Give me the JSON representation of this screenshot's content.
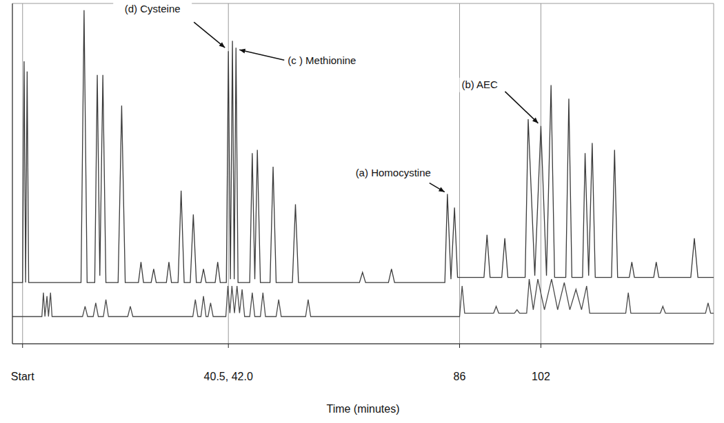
{
  "chart_data": {
    "type": "line",
    "xlabel": "Time (minutes)",
    "xlim": [
      -2,
      136
    ],
    "xticks": [
      {
        "value": 0,
        "label": "Start"
      },
      {
        "value": 40.5,
        "label": "40.5, 42.0"
      },
      86,
      102
    ],
    "ylim": [
      0,
      100
    ],
    "yticks": [
      0,
      10,
      20,
      30,
      40,
      50,
      60,
      70,
      80,
      90,
      100
    ],
    "tick_labels": "x",
    "grid": true,
    "series": [
      {
        "color": "#3a3a3a",
        "x": [
          -2,
          0,
          0.3,
          0.6,
          0.9,
          1.2,
          11.5,
          12.1,
          12.7,
          14.2,
          14.7,
          15.2,
          15.8,
          16.4,
          18.8,
          19.5,
          20.2,
          22.8,
          23.3,
          23.8,
          25.3,
          25.8,
          26.3,
          28.3,
          28.8,
          29.3,
          30.6,
          31.2,
          31.8,
          33.0,
          33.6,
          34.2,
          35.1,
          35.6,
          36.1,
          37.9,
          38.4,
          38.9,
          40.1,
          40.5,
          40.9,
          41.3,
          41.65,
          42.0,
          42.4,
          44.7,
          45.2,
          45.7,
          46.2,
          46.8,
          48.7,
          49.3,
          49.9,
          53.1,
          53.7,
          54.3,
          66.3,
          66.9,
          67.5,
          72.0,
          72.6,
          73.2,
          83.1,
          83.6,
          84.3,
          85.0,
          85.6,
          90.8,
          91.4,
          92.0,
          94.3,
          94.9,
          95.5,
          98.9,
          99.5,
          100.8,
          102.0,
          103.1,
          104.0,
          104.7,
          106.9,
          107.5,
          108.1,
          110.2,
          110.7,
          111.4,
          112.1,
          112.7,
          115.9,
          116.5,
          117.1,
          119.4,
          119.9,
          120.4,
          124.2,
          124.7,
          125.2,
          131.5,
          132.2,
          132.9,
          136
        ],
        "values": [
          18,
          18,
          83,
          18,
          80,
          18,
          18,
          98,
          18,
          18,
          79,
          20,
          79,
          18,
          18,
          70,
          18,
          18,
          24,
          18,
          18,
          22,
          18,
          18,
          24,
          18,
          18,
          45,
          18,
          18,
          38,
          18,
          18,
          22,
          18,
          18,
          24,
          18,
          18,
          86,
          19,
          89,
          19,
          87,
          18,
          18,
          56,
          19,
          57,
          18,
          18,
          52,
          18,
          18,
          41,
          18,
          18,
          21,
          18,
          18,
          22,
          18,
          18,
          44,
          19,
          40,
          19.5,
          19.5,
          32,
          19.5,
          19.5,
          31,
          19.5,
          19.5,
          66,
          20,
          64,
          20,
          76,
          19.5,
          19.5,
          72,
          19.5,
          19.5,
          56,
          20,
          59,
          19.5,
          19.5,
          57,
          19.5,
          19.5,
          24,
          19.5,
          19.5,
          24,
          19.5,
          19.5,
          31,
          19.5,
          19.5
        ]
      },
      {
        "color": "#4a4a4a",
        "x": [
          -2,
          3.8,
          4.1,
          4.4,
          4.8,
          5.1,
          5.5,
          5.8,
          11.8,
          12.3,
          12.8,
          13.9,
          14.4,
          14.9,
          15.9,
          16.4,
          16.9,
          20.7,
          21.2,
          21.7,
          33.5,
          34.0,
          34.5,
          35.1,
          35.6,
          36.1,
          36.5,
          37.0,
          37.5,
          40.0,
          40.4,
          40.8,
          41.2,
          41.7,
          42.2,
          42.7,
          43.2,
          43.7,
          44.7,
          45.2,
          45.7,
          46.8,
          47.3,
          47.8,
          49.9,
          50.4,
          50.9,
          55.7,
          56.2,
          56.7,
          86.0,
          86.5,
          87.0,
          92.7,
          93.2,
          93.7,
          96.8,
          97.3,
          97.8,
          99.2,
          99.7,
          100.5,
          101.4,
          102.7,
          104.1,
          105.3,
          106.6,
          107.7,
          108.9,
          110.0,
          111.0,
          111.6,
          118.7,
          119.2,
          119.7,
          125.5,
          126.0,
          126.5,
          134.4,
          134.9,
          135.4,
          136
        ],
        "values": [
          8,
          8,
          15,
          8,
          14,
          8,
          15,
          8,
          8,
          11,
          8,
          8,
          12,
          8,
          8,
          13,
          8,
          8,
          11,
          8,
          8,
          13,
          8,
          8,
          14,
          8,
          8,
          12,
          8,
          8,
          17,
          9,
          17,
          9,
          17,
          9,
          16,
          8,
          8,
          15,
          8,
          8,
          15,
          8,
          8,
          13,
          8,
          8,
          13,
          8,
          8,
          17,
          9,
          9,
          11,
          9,
          9,
          10,
          9,
          9,
          19,
          10,
          19,
          10,
          19,
          10,
          18,
          10,
          16,
          10,
          17,
          9,
          9,
          15,
          9,
          9,
          11,
          9,
          9,
          12,
          9,
          9
        ]
      }
    ],
    "annotations": [
      {
        "text": "(d) Cysteine",
        "x": 40.5,
        "y": 86
      },
      {
        "text": "(c ) Methionine",
        "x": 42.0,
        "y": 87
      },
      {
        "text": "(a) Homocystine",
        "x": 83.6,
        "y": 44
      },
      {
        "text": "(b) AEC",
        "x": 102.0,
        "y": 64
      }
    ]
  }
}
